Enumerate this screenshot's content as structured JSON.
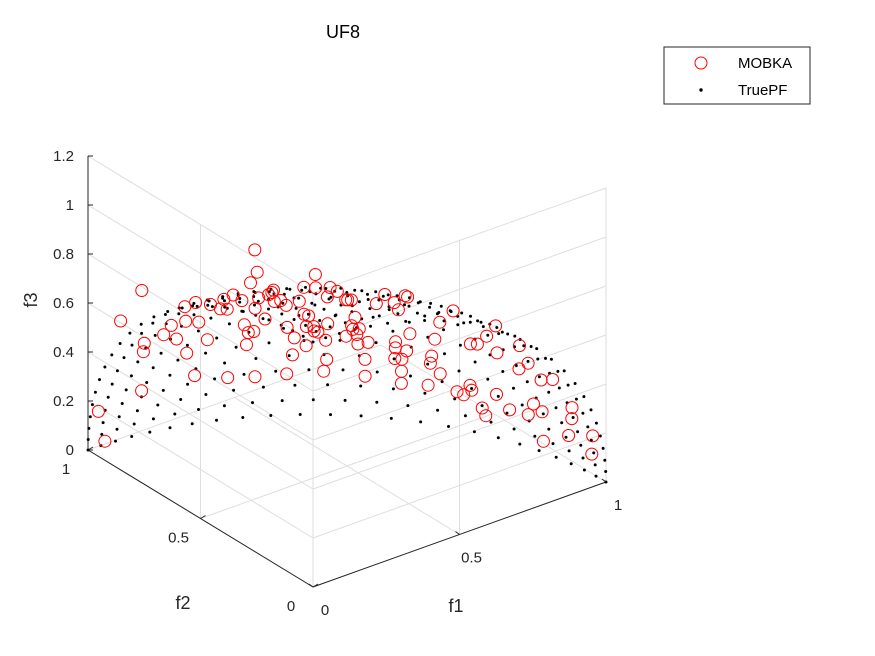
{
  "chart_data": {
    "type": "scatter",
    "title": "UF8",
    "xlabel": "f1",
    "ylabel": "f2",
    "zlabel": "f3",
    "xlim": [
      0,
      1
    ],
    "ylim": [
      0,
      1
    ],
    "zlim": [
      0,
      1.2
    ],
    "x_ticks": [
      "0",
      "0.5",
      "1"
    ],
    "y_ticks": [
      "0",
      "0.5",
      "1"
    ],
    "z_ticks": [
      "0",
      "0.2",
      "0.4",
      "0.6",
      "0.8",
      "1",
      "1.2"
    ],
    "grid": true,
    "projection": "3d",
    "legend_position": "top-right",
    "legend": [
      "MOBKA",
      "TruePF"
    ],
    "series": [
      {
        "name": "MOBKA",
        "marker": "open-circle",
        "color": "#ff0000",
        "points": [
          [
            0.02,
            0.98,
            0.16
          ],
          [
            0.05,
            0.99,
            0.02
          ],
          [
            0.99,
            0.05,
            0.09
          ],
          [
            0.97,
            0.02,
            0.19
          ],
          [
            0.31,
            0.93,
            0.21
          ],
          [
            0.47,
            0.87,
            0.17
          ],
          [
            0.62,
            0.76,
            0.19
          ],
          [
            0.77,
            0.61,
            0.16
          ],
          [
            0.88,
            0.44,
            0.18
          ],
          [
            0.95,
            0.28,
            0.14
          ],
          [
            0.16,
            0.97,
            0.19
          ],
          [
            0.9,
            0.42,
            0.11
          ],
          [
            0.21,
            0.88,
            0.43
          ],
          [
            0.42,
            0.81,
            0.41
          ],
          [
            0.58,
            0.69,
            0.44
          ],
          [
            0.73,
            0.52,
            0.43
          ],
          [
            0.83,
            0.35,
            0.44
          ],
          [
            0.88,
            0.19,
            0.43
          ],
          [
            0.12,
            0.91,
            0.4
          ],
          [
            0.91,
            0.12,
            0.39
          ],
          [
            0.18,
            0.69,
            0.69
          ],
          [
            0.34,
            0.64,
            0.69
          ],
          [
            0.49,
            0.53,
            0.7
          ],
          [
            0.63,
            0.4,
            0.69
          ],
          [
            0.67,
            0.25,
            0.7
          ],
          [
            0.7,
            0.1,
            0.71
          ],
          [
            0.1,
            0.7,
            0.71
          ],
          [
            0.51,
            0.6,
            0.63
          ],
          [
            0.19,
            0.43,
            0.88
          ],
          [
            0.35,
            0.38,
            0.86
          ],
          [
            0.46,
            0.28,
            0.84
          ],
          [
            0.4,
            0.16,
            0.9
          ],
          [
            0.08,
            0.42,
            0.9
          ],
          [
            0.3,
            0.22,
            0.92
          ],
          [
            0.1,
            0.15,
            0.98
          ],
          [
            0.05,
            0.06,
            0.99
          ],
          [
            0.24,
            0.82,
            0.52
          ],
          [
            0.46,
            0.66,
            0.6
          ],
          [
            0.6,
            0.5,
            0.62
          ],
          [
            0.74,
            0.4,
            0.54
          ],
          [
            0.8,
            0.27,
            0.53
          ],
          [
            0.28,
            0.54,
            0.79
          ],
          [
            0.15,
            0.55,
            0.82
          ],
          [
            0.37,
            0.47,
            0.8
          ],
          [
            0.66,
            0.48,
            0.58
          ],
          [
            0.56,
            0.32,
            0.77
          ],
          [
            0.82,
            0.15,
            0.55
          ],
          [
            0.12,
            0.3,
            0.95
          ],
          [
            0.05,
            0.92,
            0.55
          ],
          [
            0.03,
            0.8,
            0.75
          ],
          [
            0.07,
            0.35,
            1.15
          ],
          [
            0.04,
            0.3,
            1.1
          ],
          [
            0.04,
            0.33,
            1.04
          ],
          [
            0.06,
            0.25,
            1.0
          ],
          [
            0.2,
            0.25,
            1.05
          ],
          [
            0.13,
            0.21,
            1.05
          ],
          [
            0.18,
            0.08,
            1.05
          ],
          [
            0.22,
            0.1,
            0.95
          ],
          [
            0.12,
            0.1,
            0.9
          ],
          [
            0.15,
            0.05,
            1.08
          ],
          [
            0.25,
            0.12,
            0.88
          ],
          [
            0.27,
            0.18,
            0.85
          ],
          [
            0.2,
            0.3,
            0.86
          ],
          [
            0.32,
            0.24,
            0.78
          ],
          [
            0.27,
            0.33,
            0.74
          ],
          [
            0.38,
            0.3,
            0.7
          ],
          [
            0.42,
            0.18,
            0.72
          ],
          [
            0.45,
            0.22,
            0.66
          ],
          [
            0.3,
            0.42,
            0.7
          ],
          [
            0.22,
            0.5,
            0.72
          ],
          [
            0.42,
            0.4,
            0.62
          ],
          [
            0.48,
            0.38,
            0.58
          ],
          [
            0.32,
            0.5,
            0.6
          ],
          [
            0.55,
            0.3,
            0.56
          ],
          [
            0.24,
            0.6,
            0.6
          ],
          [
            0.4,
            0.46,
            0.5
          ],
          [
            0.5,
            0.42,
            0.48
          ],
          [
            0.58,
            0.36,
            0.48
          ],
          [
            0.36,
            0.56,
            0.48
          ],
          [
            0.28,
            0.66,
            0.5
          ],
          [
            0.62,
            0.28,
            0.52
          ],
          [
            0.68,
            0.32,
            0.4
          ],
          [
            0.72,
            0.24,
            0.38
          ],
          [
            0.78,
            0.2,
            0.34
          ],
          [
            0.84,
            0.22,
            0.24
          ],
          [
            0.76,
            0.32,
            0.28
          ],
          [
            0.86,
            0.14,
            0.3
          ],
          [
            0.92,
            0.18,
            0.22
          ],
          [
            0.82,
            0.3,
            0.18
          ],
          [
            0.7,
            0.4,
            0.3
          ],
          [
            0.64,
            0.44,
            0.36
          ],
          [
            0.6,
            0.24,
            0.62
          ],
          [
            0.66,
            0.16,
            0.62
          ],
          [
            0.72,
            0.12,
            0.58
          ],
          [
            0.78,
            0.1,
            0.5
          ],
          [
            0.84,
            0.08,
            0.44
          ],
          [
            0.93,
            0.06,
            0.3
          ],
          [
            0.96,
            0.1,
            0.22
          ],
          [
            0.98,
            0.14,
            0.12
          ],
          [
            0.94,
            0.2,
            0.08
          ],
          [
            0.12,
            0.82,
            0.52
          ],
          [
            0.1,
            0.76,
            0.6
          ],
          [
            0.16,
            0.62,
            0.72
          ],
          [
            0.06,
            0.6,
            0.8
          ],
          [
            0.08,
            0.5,
            0.86
          ],
          [
            0.16,
            0.45,
            0.86
          ],
          [
            0.1,
            0.88,
            0.46
          ],
          [
            0.18,
            0.8,
            0.56
          ],
          [
            0.26,
            0.72,
            0.62
          ],
          [
            0.34,
            0.7,
            0.6
          ],
          [
            0.4,
            0.64,
            0.62
          ],
          [
            0.48,
            0.74,
            0.44
          ],
          [
            0.54,
            0.7,
            0.44
          ],
          [
            0.38,
            0.8,
            0.46
          ],
          [
            0.3,
            0.86,
            0.4
          ],
          [
            0.26,
            0.9,
            0.34
          ],
          [
            0.56,
            0.76,
            0.32
          ],
          [
            0.66,
            0.66,
            0.34
          ],
          [
            0.4,
            0.9,
            0.18
          ],
          [
            0.54,
            0.82,
            0.18
          ],
          [
            0.7,
            0.68,
            0.18
          ],
          [
            0.8,
            0.52,
            0.28
          ],
          [
            0.86,
            0.48,
            0.16
          ],
          [
            0.74,
            0.6,
            0.28
          ]
        ]
      },
      {
        "name": "TruePF",
        "marker": "dot",
        "color": "#000000",
        "grid_divisions": 24,
        "surface": "sphere-octant"
      }
    ]
  }
}
